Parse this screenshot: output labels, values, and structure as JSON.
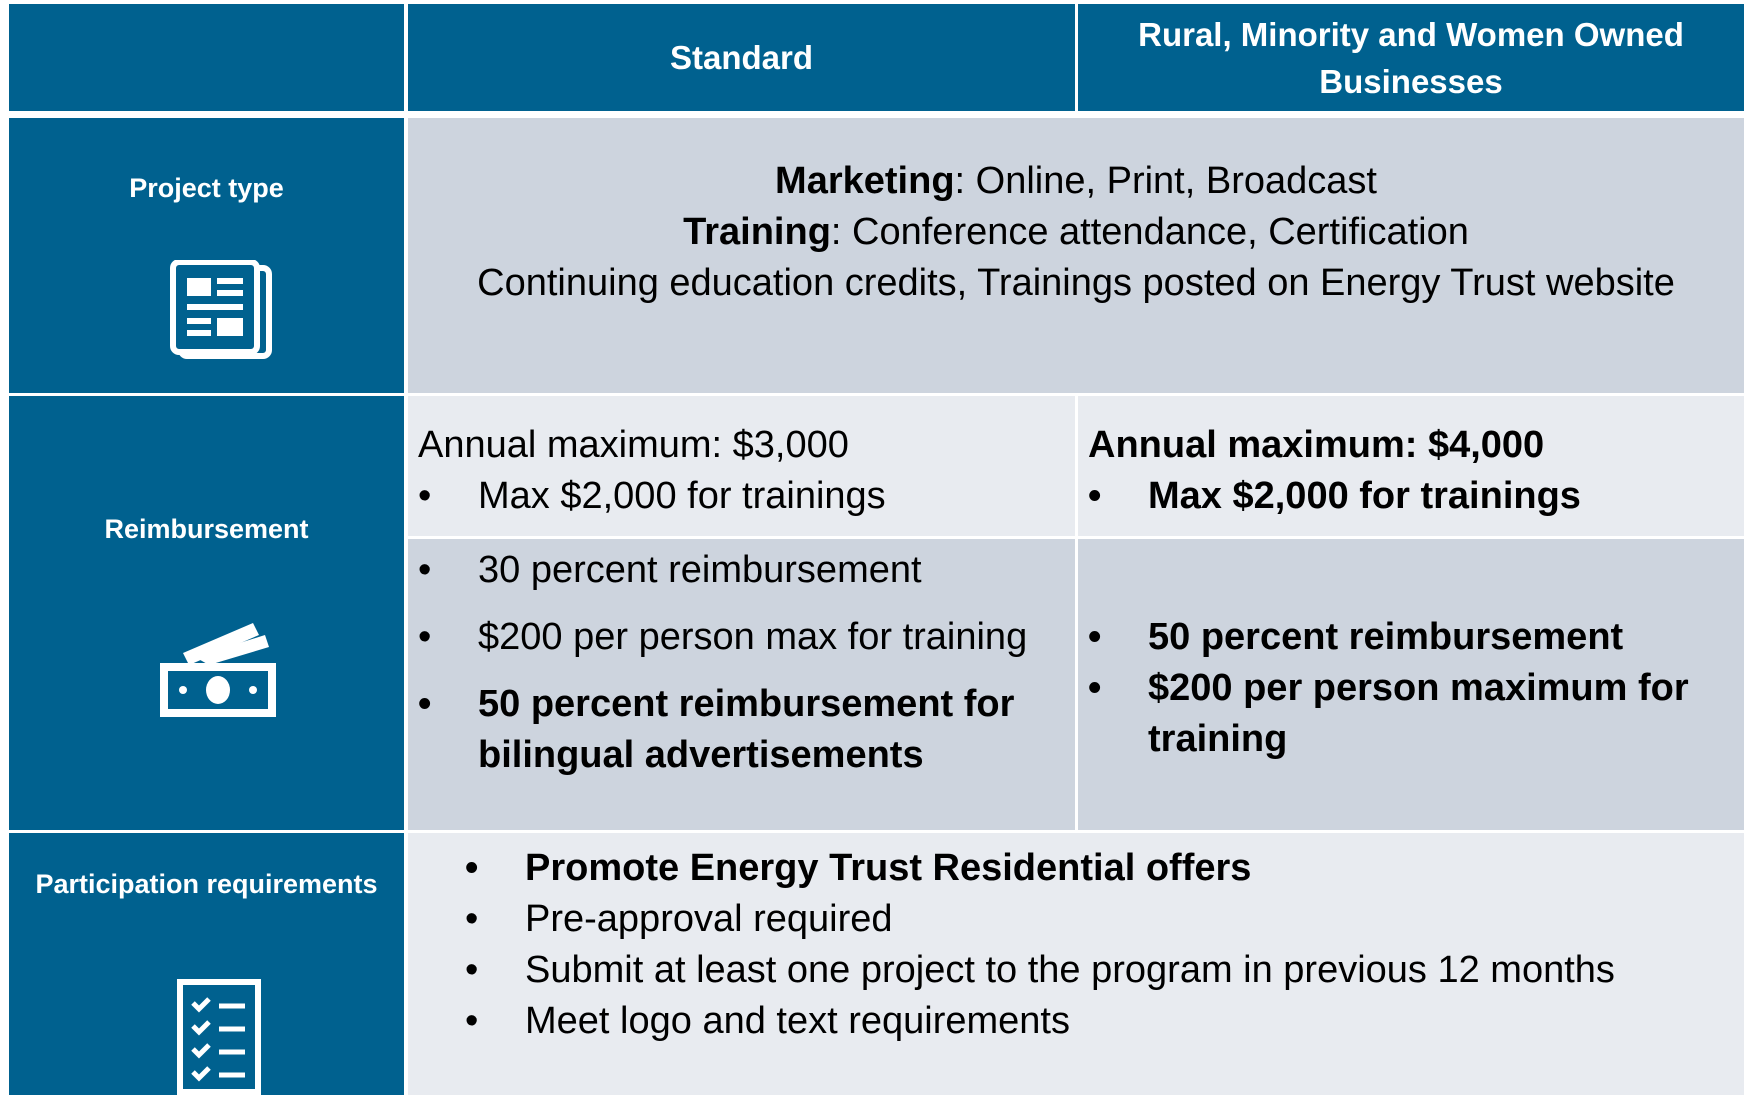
{
  "header": {
    "columns": [
      "Standard",
      "Rural, Minority and Women Owned Businesses"
    ]
  },
  "rows": [
    {
      "label": "Project type",
      "content": [
        {
          "bold": "Marketing",
          "text": ": Online, Print, Broadcast"
        },
        {
          "bold": "Training",
          "text": ": Conference attendance, Certification"
        },
        {
          "text": "Continuing education credits, Trainings posted on Energy Trust website"
        }
      ]
    },
    {
      "label": "Reimbursement",
      "standard": {
        "heading": "Annual maximum: $3,000",
        "bullets": [
          "Max $2,000 for trainings"
        ],
        "rates": [
          "30 percent reimbursement",
          "$200 per person max for training",
          "50 percent reimbursement for bilingual advertisements"
        ]
      },
      "rural": {
        "heading": "Annual maximum: $4,000",
        "bullets": [
          "Max $2,000 for trainings"
        ],
        "rates": [
          "50 percent reimbursement",
          "$200 per person maximum for training"
        ]
      }
    },
    {
      "label": "Participation requirements",
      "bullets": [
        "Promote Energy Trust Residential offers",
        "Pre-approval required",
        "Submit at least one project to the program in previous 12 months",
        "Meet logo and text requirements"
      ]
    }
  ]
}
